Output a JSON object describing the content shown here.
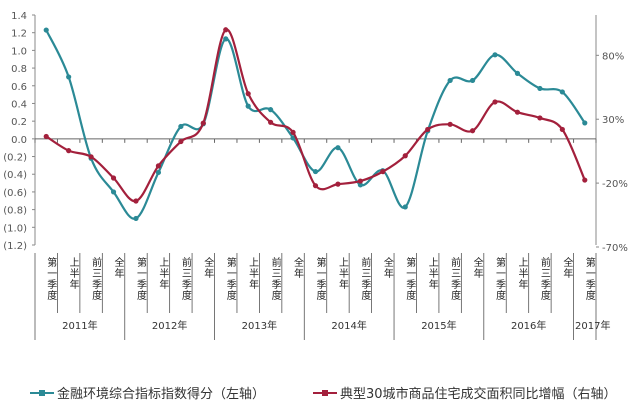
{
  "chart_data": {
    "type": "line",
    "categories": [
      "第一季度",
      "上半年",
      "前三季度",
      "全年",
      "第一季度",
      "上半年",
      "前三季度",
      "全年",
      "第一季度",
      "上半年",
      "前三季度",
      "全年",
      "第一季度",
      "上半年",
      "前三季度",
      "全年",
      "第一季度",
      "上半年",
      "前三季度",
      "全年",
      "第一季度",
      "上半年",
      "前三季度",
      "全年",
      "第一季度"
    ],
    "groups": [
      {
        "label": "2011年",
        "count": 4
      },
      {
        "label": "2012年",
        "count": 4
      },
      {
        "label": "2013年",
        "count": 4
      },
      {
        "label": "2014年",
        "count": 4
      },
      {
        "label": "2015年",
        "count": 4
      },
      {
        "label": "2016年",
        "count": 4
      },
      {
        "label": "2017年",
        "count": 1
      }
    ],
    "series": [
      {
        "name": "金融环境综合指标指数得分（左轴）",
        "axis": "left",
        "color": "#2b8a96",
        "values": [
          1.23,
          0.7,
          -0.22,
          -0.6,
          -0.9,
          -0.38,
          0.14,
          0.17,
          1.13,
          0.37,
          0.33,
          0.01,
          -0.37,
          -0.1,
          -0.52,
          -0.36,
          -0.77,
          0.09,
          0.66,
          0.66,
          0.95,
          0.74,
          0.57,
          0.53,
          0.18
        ]
      },
      {
        "name": "典型30城市商品住宅成交面积同比增幅（右轴）",
        "axis": "right",
        "color": "#a3203c",
        "values": [
          16.5,
          5.4,
          0.6,
          -16,
          -34,
          -6.5,
          12.5,
          27,
          100,
          50,
          27.6,
          19.7,
          -22,
          -20.8,
          -18.4,
          -11,
          1.4,
          22,
          26,
          21,
          43.5,
          35.5,
          31,
          22,
          -17.6
        ]
      }
    ],
    "left_axis": {
      "ylim": [
        -1.2,
        1.4
      ],
      "ticks": [
        1.4,
        1.2,
        1.0,
        0.8,
        0.6,
        0.4,
        0.2,
        0.0,
        -0.2,
        -0.4,
        -0.6,
        -0.8,
        -1.0,
        -1.2
      ],
      "tick_labels": [
        "1.4",
        "1.2",
        "1.0",
        "0.8",
        "0.6",
        "0.4",
        "0.2",
        "0.0",
        "(0.2)",
        "(0.4)",
        "(0.6)",
        "(0.8)",
        "(1.0)",
        "(1.2)"
      ]
    },
    "right_axis": {
      "ylim": [
        -70,
        110
      ],
      "ticks": [
        80,
        30,
        -20,
        -70
      ],
      "tick_labels": [
        "80%",
        "30%",
        "-20%",
        "-70%"
      ]
    },
    "grid": false,
    "legend_position": "bottom"
  }
}
